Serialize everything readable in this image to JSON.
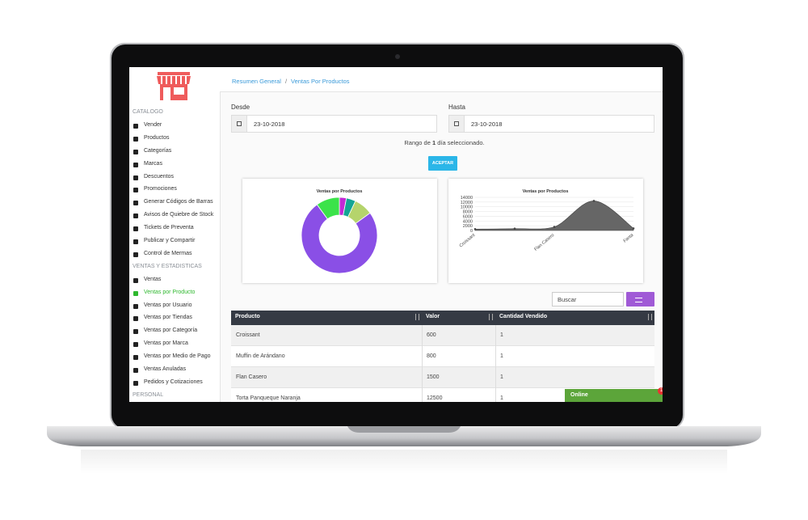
{
  "sidebar": {
    "sections": [
      {
        "title": "CATALOGO",
        "items": [
          "Vender",
          "Productos",
          "Categorías",
          "Marcas",
          "Descuentos",
          "Promociones",
          "Generar Códigos de Barras",
          "Avisos de Quiebre de Stock",
          "Tickets de Preventa",
          "Publicar y Compartir",
          "Control de Mermas"
        ]
      },
      {
        "title": "VENTAS Y ESTADISTICAS",
        "items": [
          "Ventas",
          "Ventas por Producto",
          "Ventas por Usuario",
          "Ventas por Tiendas",
          "Ventas por Categoría",
          "Ventas por Marca",
          "Ventas por Medio de Pago",
          "Ventas Anuladas",
          "Pedidos y Cotizaciones"
        ]
      },
      {
        "title": "PERSONAL",
        "items": []
      }
    ]
  },
  "breadcrumb": [
    "Resumen General",
    "/",
    "Ventas Por Productos"
  ],
  "filters": {
    "from_label": "Desde",
    "from_value": "23-10-2018",
    "to_label": "Hasta",
    "to_value": "23-10-2018",
    "range_text": [
      "Rango de",
      "1",
      "día seleccionado."
    ],
    "button": "ACEPTAR"
  },
  "chart_data": [
    {
      "type": "pie",
      "title": "Ventas por Productos",
      "donut": true,
      "values": [
        3,
        4,
        8,
        75,
        10
      ],
      "colors": [
        "#c229d6",
        "#12a594",
        "#b5d46c",
        "#8a4fe6",
        "#3be34a"
      ]
    },
    {
      "type": "area",
      "title": "Ventas por Productos",
      "categories": [
        "Croissant",
        null,
        "Flan Casero",
        null,
        "Fanta"
      ],
      "values": [
        600,
        800,
        1500,
        12500,
        900
      ],
      "color": "#666666",
      "ylim": [
        0,
        14000
      ],
      "yticks": [
        0,
        2000,
        4000,
        6000,
        8000,
        10000,
        12000,
        14000
      ],
      "grid": true
    }
  ],
  "search": {
    "placeholder": "Buscar"
  },
  "table": {
    "columns": [
      "Producto",
      "Valor",
      "Cantidad Vendido"
    ],
    "rows": [
      [
        "Croissant",
        600,
        1
      ],
      [
        "Muffin de Arándano",
        800,
        1
      ],
      [
        "Flan Casero",
        1500,
        1
      ],
      [
        "Torta Panqueque Naranja",
        12500,
        1
      ]
    ]
  },
  "status": {
    "label": "Online",
    "badge": "1"
  }
}
